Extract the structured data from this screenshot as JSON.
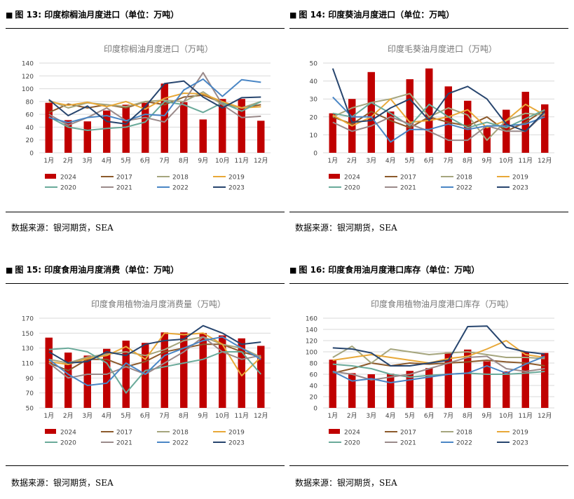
{
  "panels": [
    {
      "figure_label": "图 13:",
      "heading": "印度棕榈油月度进口（单位：万吨）",
      "source": "数据来源：银河期货，SEA"
    },
    {
      "figure_label": "图 14:",
      "heading": "印度葵油月度进口（单位：万吨）",
      "source": "数据来源：银河期货，SEA"
    },
    {
      "figure_label": "图 15:",
      "heading": "印度食用油月度消费（单位：万吨）",
      "source": "数据来源：银河期货，SEA"
    },
    {
      "figure_label": "图 16:",
      "heading": "印度食用油月度港口库存（单位：万吨）",
      "source": "数据来源：银河期货，SEA"
    }
  ],
  "series_colors": {
    "2024": "#c00000",
    "2017": "#8c5a2b",
    "2018": "#a5a57d",
    "2019": "#e8a838",
    "2020": "#6aaa9a",
    "2021": "#9a8a8a",
    "2022": "#4a86c5",
    "2023": "#27456e"
  },
  "chart_data": [
    {
      "type": "bar",
      "title": "印度棕榈油月度进口（万吨）",
      "categories": [
        "1月",
        "2月",
        "3月",
        "4月",
        "5月",
        "6月",
        "7月",
        "8月",
        "9月",
        "10月",
        "11月",
        "12月"
      ],
      "ylim": [
        0,
        140
      ],
      "yticks": [
        0,
        20,
        40,
        60,
        80,
        100,
        120,
        140
      ],
      "grid": true,
      "legend_position": "bottom",
      "bar_series": {
        "name": "2024",
        "values": [
          78,
          51,
          49,
          66,
          75,
          78,
          108,
          79,
          52,
          84,
          84,
          50
        ]
      },
      "line_series": [
        {
          "name": "2017",
          "values": [
            63,
            76,
            70,
            75,
            70,
            80,
            75,
            87,
            90,
            78,
            70,
            75
          ]
        },
        {
          "name": "2018",
          "values": [
            82,
            70,
            78,
            75,
            72,
            80,
            82,
            80,
            95,
            75,
            70,
            80
          ]
        },
        {
          "name": "2019",
          "values": [
            80,
            74,
            79,
            72,
            80,
            68,
            85,
            93,
            92,
            80,
            70,
            72
          ]
        },
        {
          "name": "2020",
          "values": [
            56,
            40,
            35,
            38,
            40,
            48,
            80,
            75,
            63,
            78,
            65,
            80
          ]
        },
        {
          "name": "2021",
          "values": [
            60,
            43,
            55,
            70,
            50,
            55,
            48,
            80,
            125,
            75,
            55,
            57
          ]
        },
        {
          "name": "2022",
          "values": [
            55,
            47,
            55,
            58,
            50,
            60,
            58,
            98,
            115,
            88,
            114,
            110
          ]
        },
        {
          "name": "2023",
          "values": [
            83,
            58,
            73,
            49,
            45,
            72,
            108,
            112,
            87,
            70,
            86,
            87
          ]
        }
      ]
    },
    {
      "type": "bar",
      "title": "印度毛葵油月度进口（万吨）",
      "categories": [
        "1月",
        "2月",
        "3月",
        "4月",
        "5月",
        "6月",
        "7月",
        "8月",
        "9月",
        "10月",
        "11月",
        "12月"
      ],
      "ylim": [
        0,
        50
      ],
      "yticks": [
        0,
        10,
        20,
        30,
        40,
        50
      ],
      "grid": true,
      "legend_position": "bottom",
      "bar_series": {
        "name": "2024",
        "values": [
          22,
          30,
          45,
          23,
          41,
          47,
          37,
          29,
          15,
          24,
          34,
          27
        ]
      },
      "line_series": [
        {
          "name": "2017",
          "values": [
            20,
            16,
            23,
            18,
            14,
            20,
            17,
            15,
            20,
            12,
            17,
            24
          ]
        },
        {
          "name": "2018",
          "values": [
            20,
            25,
            28,
            30,
            33,
            20,
            25,
            21,
            7,
            18,
            22,
            21
          ]
        },
        {
          "name": "2019",
          "values": [
            21,
            15,
            20,
            30,
            17,
            18,
            20,
            24,
            14,
            18,
            27,
            21
          ]
        },
        {
          "name": "2020",
          "values": [
            22,
            20,
            28,
            22,
            15,
            27,
            20,
            14,
            17,
            14,
            19,
            24
          ]
        },
        {
          "name": "2021",
          "values": [
            17,
            12,
            15,
            20,
            16,
            12,
            7,
            7,
            15,
            12,
            12,
            22
          ]
        },
        {
          "name": "2022",
          "values": [
            31,
            20,
            20,
            6,
            13,
            13,
            16,
            13,
            15,
            15,
            16,
            20
          ]
        },
        {
          "name": "2023",
          "values": [
            47,
            17,
            18,
            25,
            30,
            18,
            33,
            37,
            30,
            16,
            12,
            23
          ]
        }
      ]
    },
    {
      "type": "bar",
      "title": "印度食用植物油月度消费量（万吨）",
      "categories": [
        "1月",
        "2月",
        "3月",
        "4月",
        "5月",
        "6月",
        "7月",
        "8月",
        "9月",
        "10月",
        "11月",
        "12月"
      ],
      "ylim": [
        50,
        170
      ],
      "yticks": [
        50,
        70,
        90,
        110,
        130,
        150,
        170
      ],
      "grid": true,
      "legend_position": "bottom",
      "bar_series": {
        "name": "2024",
        "values": [
          144,
          124,
          120,
          129,
          140,
          137,
          151,
          151,
          150,
          147,
          143,
          133
        ]
      },
      "line_series": [
        {
          "name": "2017",
          "values": [
            110,
            100,
            115,
            115,
            105,
            112,
            125,
            130,
            135,
            135,
            125,
            118
          ]
        },
        {
          "name": "2018",
          "values": [
            115,
            110,
            118,
            122,
            125,
            120,
            128,
            140,
            145,
            135,
            130,
            118
          ]
        },
        {
          "name": "2019",
          "values": [
            112,
            108,
            116,
            120,
            132,
            115,
            150,
            148,
            150,
            135,
            93,
            118
          ]
        },
        {
          "name": "2020",
          "values": [
            128,
            130,
            125,
            110,
            70,
            100,
            105,
            110,
            115,
            125,
            125,
            95
          ]
        },
        {
          "name": "2021",
          "values": [
            110,
            90,
            95,
            95,
            105,
            95,
            110,
            125,
            145,
            125,
            115,
            120
          ]
        },
        {
          "name": "2022",
          "values": [
            115,
            95,
            80,
            83,
            110,
            95,
            120,
            130,
            140,
            145,
            130,
            115
          ]
        },
        {
          "name": "2023",
          "values": [
            125,
            110,
            112,
            125,
            120,
            135,
            140,
            142,
            160,
            150,
            135,
            138
          ]
        }
      ]
    },
    {
      "type": "bar",
      "title": "印度食用植物油月度港口库存（万吨）",
      "categories": [
        "1月",
        "2月",
        "3月",
        "4月",
        "5月",
        "6月",
        "7月",
        "8月",
        "9月",
        "10月",
        "11月",
        "12月"
      ],
      "ylim": [
        0,
        160
      ],
      "yticks": [
        0,
        20,
        40,
        60,
        80,
        100,
        120,
        140,
        160
      ],
      "grid": true,
      "legend_position": "bottom",
      "bar_series": {
        "name": "2024",
        "values": [
          86,
          62,
          60,
          61,
          66,
          71,
          99,
          104,
          83,
          65,
          100,
          98
        ]
      },
      "line_series": [
        {
          "name": "2017",
          "values": [
            62,
            70,
            80,
            75,
            80,
            78,
            80,
            82,
            85,
            82,
            80,
            75
          ]
        },
        {
          "name": "2018",
          "values": [
            90,
            110,
            80,
            105,
            100,
            95,
            98,
            100,
            95,
            90,
            90,
            88
          ]
        },
        {
          "name": "2019",
          "values": [
            85,
            90,
            95,
            90,
            85,
            80,
            88,
            92,
            105,
            120,
            95,
            90
          ]
        },
        {
          "name": "2020",
          "values": [
            78,
            75,
            70,
            60,
            55,
            58,
            60,
            62,
            60,
            60,
            62,
            65
          ]
        },
        {
          "name": "2021",
          "values": [
            65,
            60,
            50,
            55,
            60,
            70,
            80,
            90,
            92,
            70,
            65,
            70
          ]
        },
        {
          "name": "2022",
          "values": [
            65,
            48,
            52,
            45,
            50,
            55,
            60,
            62,
            75,
            62,
            78,
            92
          ]
        },
        {
          "name": "2023",
          "values": [
            107,
            105,
            98,
            75,
            75,
            80,
            85,
            145,
            146,
            108,
            100,
            96
          ]
        }
      ]
    }
  ]
}
